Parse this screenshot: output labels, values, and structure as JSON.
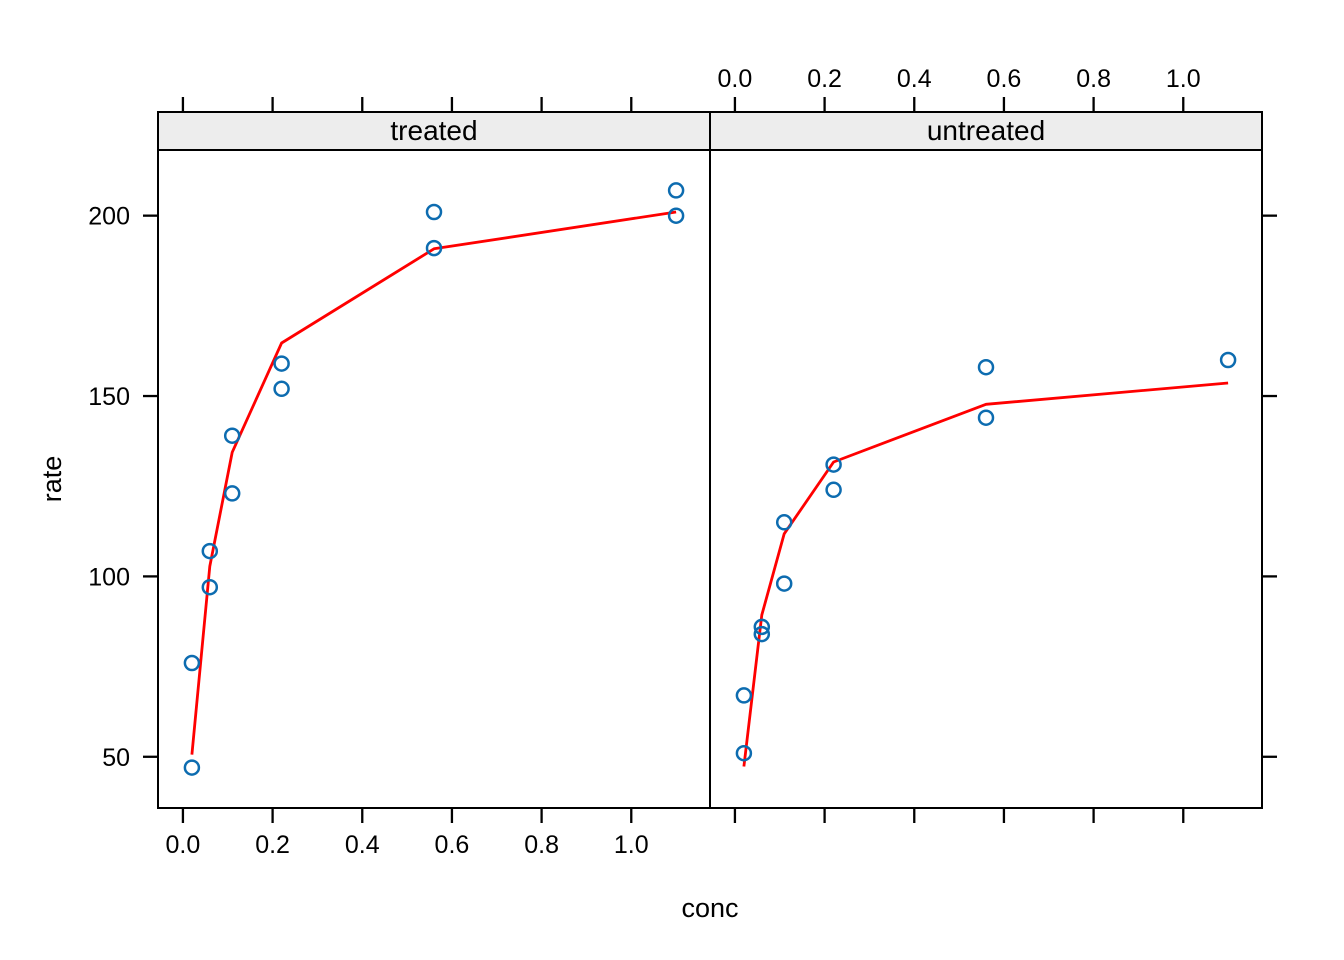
{
  "colors": {
    "background": "#ffffff",
    "point_stroke": "#0d6cb0",
    "fit_line": "#ff0000",
    "strip_bg": "#ededed",
    "border": "#000000",
    "text": "#000000"
  },
  "chart_data": {
    "type": "scatter",
    "layout": "lattice-two-panel",
    "title": "",
    "xlabel": "conc",
    "ylabel": "rate",
    "xlim": [
      -0.0556,
      1.1756
    ],
    "ylim": [
      35.8,
      218.2
    ],
    "x_ticks": [
      0.0,
      0.2,
      0.4,
      0.6,
      0.8,
      1.0
    ],
    "x_tick_labels": [
      "0.0",
      "0.2",
      "0.4",
      "0.6",
      "0.8",
      "1.0"
    ],
    "y_ticks": [
      50,
      100,
      150,
      200
    ],
    "y_tick_labels": [
      "50",
      "100",
      "150",
      "200"
    ],
    "grid": false,
    "legend": "none",
    "axis_alternating": {
      "x_labels_bottom_panel": "treated",
      "x_labels_top_panel": "untreated",
      "y_labels_side": "left"
    },
    "panels": [
      {
        "label": "treated",
        "points": {
          "x": [
            0.02,
            0.02,
            0.06,
            0.06,
            0.11,
            0.11,
            0.22,
            0.22,
            0.56,
            0.56,
            1.1,
            1.1
          ],
          "y": [
            76,
            47,
            97,
            107,
            123,
            139,
            159,
            152,
            191,
            201,
            207,
            200
          ]
        },
        "fit_line": {
          "x": [
            0.02,
            0.06,
            0.11,
            0.22,
            0.56,
            1.1
          ],
          "y": [
            50.6,
            102.8,
            134.4,
            164.7,
            190.8,
            201.0
          ]
        }
      },
      {
        "label": "untreated",
        "points": {
          "x": [
            0.02,
            0.02,
            0.06,
            0.06,
            0.11,
            0.11,
            0.22,
            0.22,
            0.56,
            0.56,
            1.1
          ],
          "y": [
            67,
            51,
            84,
            86,
            98,
            115,
            131,
            124,
            144,
            158,
            160
          ]
        },
        "fit_line": {
          "x": [
            0.02,
            0.06,
            0.11,
            0.22,
            0.56,
            1.1
          ],
          "y": [
            47.3,
            89.3,
            111.8,
            131.7,
            147.7,
            153.6
          ]
        }
      }
    ]
  }
}
